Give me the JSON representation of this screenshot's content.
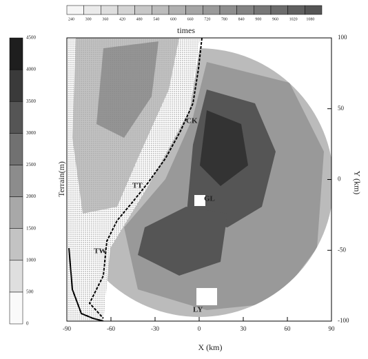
{
  "top_colorbar": {
    "ticks": [
      240,
      300,
      360,
      420,
      480,
      540,
      600,
      660,
      720,
      780,
      840,
      900,
      960,
      1020,
      1080
    ],
    "label": "times"
  },
  "left_colorbar": {
    "ticks": [
      0,
      500,
      1000,
      1500,
      2000,
      2500,
      3000,
      3500,
      4000,
      4500
    ],
    "label": "Terrain(m)"
  },
  "axes": {
    "xticks": [
      -90,
      -60,
      -30,
      0,
      30,
      60,
      90
    ],
    "xlabel": "X (km)",
    "yticks": [
      100,
      50,
      0,
      -50,
      -100
    ],
    "ylabel": "Y (km)"
  },
  "places": [
    "CK",
    "TT",
    "TW",
    "GL",
    "LY"
  ]
}
